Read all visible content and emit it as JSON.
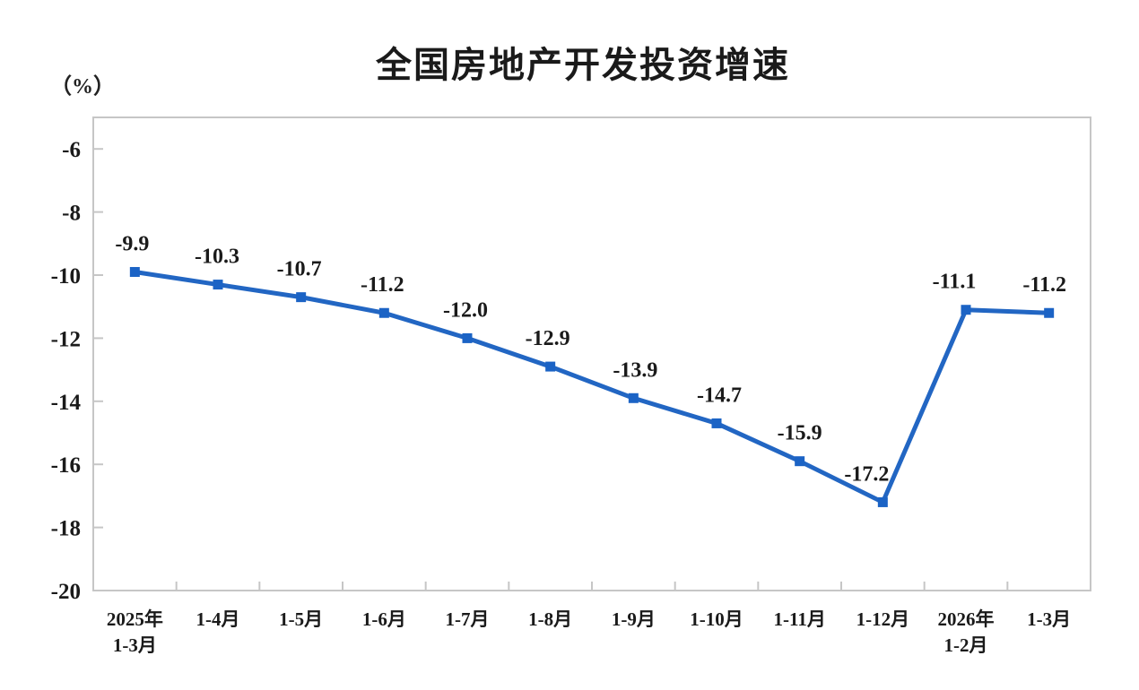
{
  "chart_data": {
    "type": "line",
    "title": "全国房地产开发投资增速",
    "unit_label": "（%）",
    "categories": [
      "2025年\n1-3月",
      "1-4月",
      "1-5月",
      "1-6月",
      "1-7月",
      "1-8月",
      "1-9月",
      "1-10月",
      "1-11月",
      "1-12月",
      "2026年\n1-2月",
      "1-3月"
    ],
    "values": [
      -9.9,
      -10.3,
      -10.7,
      -11.2,
      -12.0,
      -12.9,
      -13.9,
      -14.7,
      -15.9,
      -17.2,
      -11.1,
      -11.2
    ],
    "data_labels": [
      "-9.9",
      "-10.3",
      "-10.7",
      "-11.2",
      "-12.0",
      "-12.9",
      "-13.9",
      "-14.7",
      "-15.9",
      "-17.2",
      "-11.1",
      "-11.2"
    ],
    "xlabel": "",
    "ylabel": "（%）",
    "ylim": [
      -20,
      -5
    ],
    "yticks": [
      -6,
      -8,
      -10,
      -12,
      -14,
      -16,
      -18,
      -20
    ],
    "grid": false,
    "legend_position": "none",
    "series_name": "全国房地产开发投资增速",
    "colors": {
      "line": "#2266c3",
      "marker": "#1b63c5",
      "axis": "#c6c6c6",
      "text": "#1a1a1a"
    }
  }
}
